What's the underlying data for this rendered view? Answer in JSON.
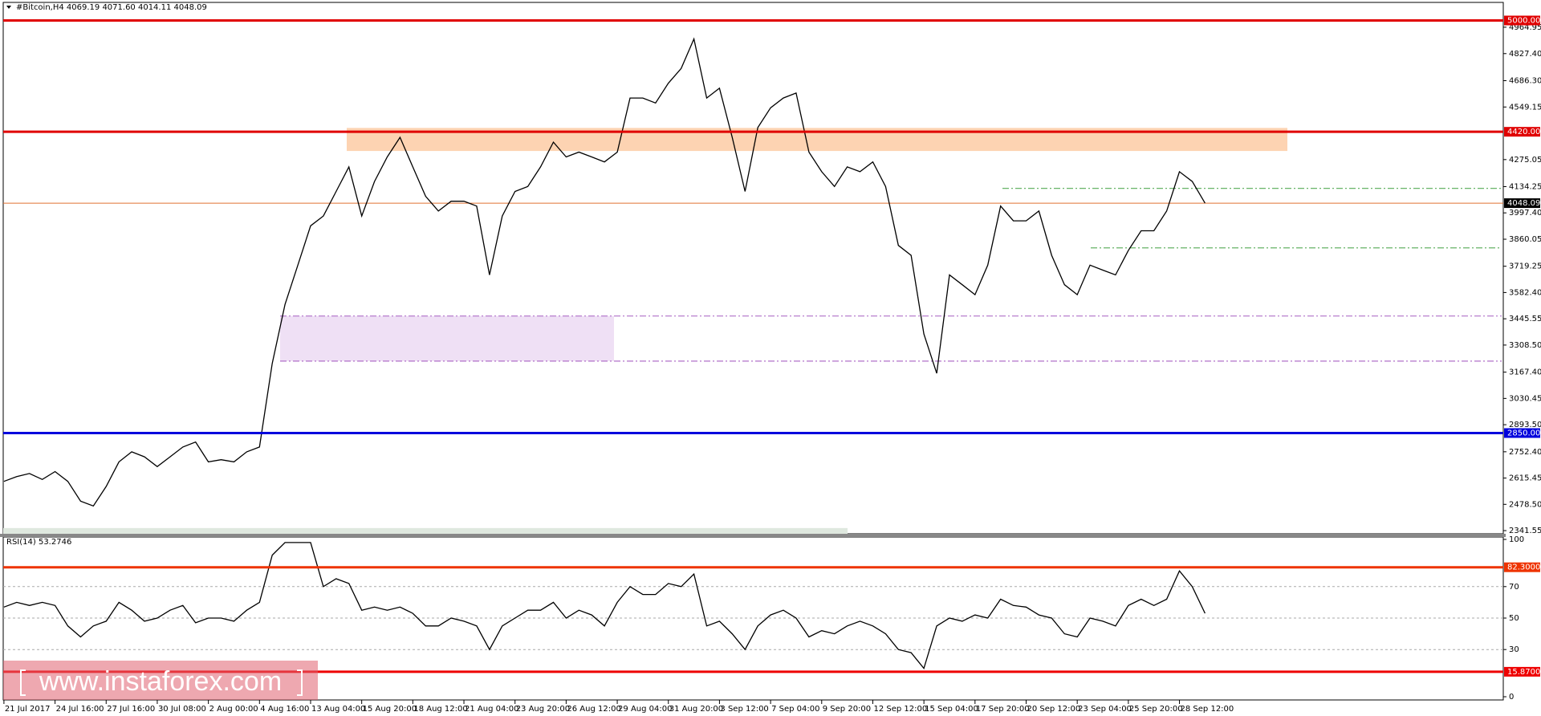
{
  "chart_data": [
    {
      "type": "line",
      "title": "#Bitcoin,H4 4069.19 4071.60 4014.11 4048.09",
      "color": "#000000",
      "categories": [
        "21 Jul 2017",
        null,
        null,
        null,
        "24 Jul 16:00",
        null,
        null,
        null,
        "27 Jul 16:00",
        null,
        null,
        null,
        "30 Jul 08:00",
        null,
        null,
        null,
        "2 Aug 00:00",
        null,
        null,
        null,
        "4 Aug 16:00",
        null,
        null,
        null,
        "13 Aug 04:00",
        null,
        null,
        null,
        "15 Aug 20:00",
        null,
        null,
        null,
        "18 Aug 12:00",
        null,
        null,
        null,
        "21 Aug 04:00",
        null,
        null,
        null,
        "23 Aug 20:00",
        null,
        null,
        null,
        "26 Aug 12:00",
        null,
        null,
        null,
        "29 Aug 04:00",
        null,
        null,
        null,
        "31 Aug 20:00",
        null,
        null,
        null,
        "3 Sep 12:00",
        null,
        null,
        null,
        "7 Sep 04:00",
        null,
        null,
        null,
        "9 Sep 20:00",
        null,
        null,
        null,
        "12 Sep 12:00",
        null,
        null,
        null,
        "15 Sep 04:00",
        null,
        null,
        null,
        "17 Sep 20:00",
        null,
        null,
        null,
        "20 Sep 12:00",
        null,
        null,
        null,
        "23 Sep 04:00",
        null,
        null,
        null,
        "25 Sep 20:00",
        null,
        null,
        null,
        "28 Sep 12:00",
        null,
        null
      ],
      "values": [
        2598,
        2623,
        2639,
        2608,
        2649,
        2598,
        2495,
        2470,
        2572,
        2700,
        2752,
        2726,
        2675,
        2726,
        2777,
        2803,
        2700,
        2711,
        2700,
        2752,
        2777,
        3213,
        3520,
        3725,
        3930,
        3981,
        4109,
        4237,
        3981,
        4161,
        4289,
        4391,
        4237,
        4084,
        4007,
        4058,
        4058,
        4033,
        3674,
        3981,
        4109,
        4135,
        4237,
        4366,
        4289,
        4314,
        4289,
        4263,
        4314,
        4596,
        4596,
        4570,
        4673,
        4750,
        4904,
        4596,
        4647,
        4391,
        4109,
        4442,
        4545,
        4596,
        4622,
        4314,
        4212,
        4135,
        4237,
        4212,
        4263,
        4135,
        3828,
        3776,
        3366,
        3161,
        3674,
        3623,
        3571,
        3725,
        4033,
        3956,
        3956,
        4007,
        3776,
        3623,
        3571,
        3725,
        3699,
        3674,
        3802,
        3904,
        3904,
        4007,
        4212,
        4161,
        4048
      ],
      "ylim": [
        2325,
        5090
      ],
      "yticks": [
        4964.95,
        {
          "value": 4827.4,
          "label": "4827.40"
        },
        {
          "value": 4686.3,
          "label": "4686.30"
        },
        4549.15,
        4275.05,
        4134.25,
        {
          "value": 3997.4,
          "label": "3997.40"
        },
        3860.05,
        3719.25,
        {
          "value": 3582.4,
          "label": "3582.40"
        },
        3445.55,
        {
          "value": 3308.5,
          "label": "3308.50"
        },
        {
          "value": 3167.4,
          "label": "3167.40"
        },
        3030.45,
        {
          "value": 2893.5,
          "label": "2893.50"
        },
        {
          "value": 2752.4,
          "label": "2752.40"
        },
        2615.45,
        {
          "value": 2478.5,
          "label": "2478.50"
        },
        2341.55
      ],
      "grid": false,
      "levels": [
        {
          "value": 5000,
          "label": "5000.00",
          "color": "#e00000"
        },
        {
          "value": 4420,
          "label": "4420.00",
          "color": "#e00000"
        },
        {
          "value": 2850,
          "label": "2850.00",
          "color": "#0000dd"
        }
      ],
      "last_price": {
        "value": 4048.09,
        "label": "4048.09"
      },
      "zones": [
        {
          "from": 4320,
          "to": 4440,
          "color": "#fdd3b2"
        },
        {
          "from": 3225,
          "to": 3460,
          "color": "#efe0f5"
        },
        {
          "from": 2310,
          "to": 2355,
          "color": "#dfe8df"
        }
      ],
      "dashed_levels": [
        {
          "value": 3460,
          "color": "#b070c8"
        },
        {
          "value": 3225,
          "color": "#b070c8"
        },
        {
          "value": 4125,
          "color": "#55aa55"
        },
        {
          "value": 3815,
          "color": "#55aa55"
        }
      ]
    },
    {
      "type": "line",
      "title": "RSI(14) 53.2746",
      "color": "#000000",
      "values": [
        57,
        60,
        58,
        60,
        58,
        45,
        38,
        45,
        48,
        60,
        55,
        48,
        50,
        55,
        58,
        47,
        50,
        50,
        48,
        55,
        60,
        90,
        98,
        98,
        98,
        70,
        75,
        72,
        55,
        57,
        55,
        57,
        53,
        45,
        45,
        50,
        48,
        45,
        30,
        45,
        50,
        55,
        55,
        60,
        50,
        55,
        52,
        45,
        60,
        70,
        65,
        65,
        72,
        70,
        78,
        45,
        48,
        40,
        30,
        45,
        52,
        55,
        50,
        38,
        42,
        40,
        45,
        48,
        45,
        40,
        30,
        28,
        18,
        45,
        50,
        48,
        52,
        50,
        62,
        58,
        57,
        52,
        50,
        40,
        38,
        50,
        48,
        45,
        58,
        62,
        58,
        62,
        80,
        70,
        53
      ],
      "ylim": [
        0,
        100
      ],
      "yticks": [
        100,
        70,
        50,
        30,
        0
      ],
      "grid": true,
      "levels": [
        {
          "value": 82.3,
          "label": "82.3000",
          "color": "#ee3300"
        },
        {
          "value": 15.87,
          "label": "15.8700",
          "color": "#ee0000"
        }
      ]
    }
  ],
  "watermark": "www.instaforex.com"
}
